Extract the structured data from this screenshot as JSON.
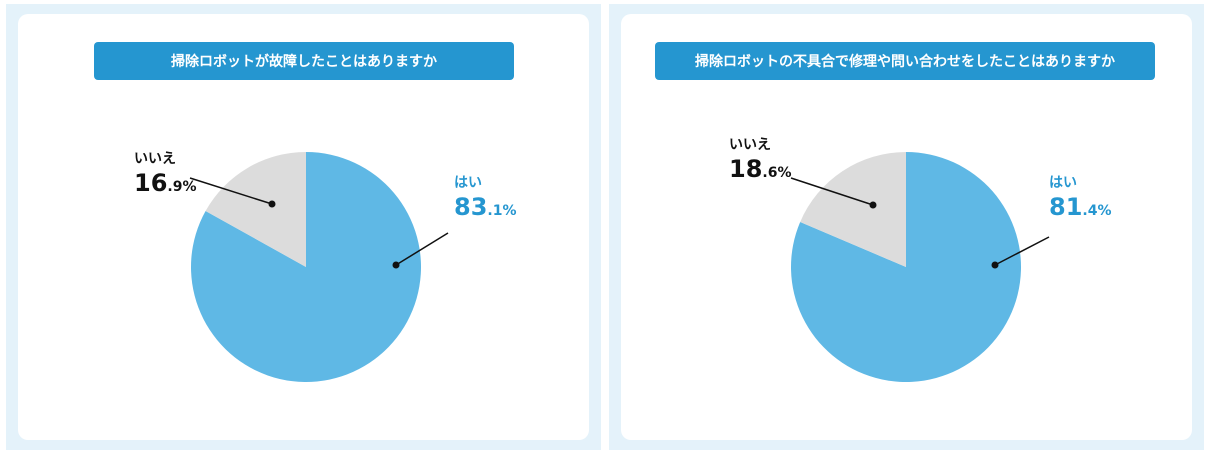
{
  "colors": {
    "yes": "#5fb8e5",
    "no": "#dcdcdc",
    "accent": "#2596d0",
    "panel_bg": "#e4f2fa"
  },
  "chart_data": [
    {
      "type": "pie",
      "title": "掃除ロボットが故障したことはありますか",
      "slices": [
        {
          "label": "はい",
          "value": 83.1,
          "int": "83",
          "dec": ".1%"
        },
        {
          "label": "いいえ",
          "value": 16.9,
          "int": "16",
          "dec": ".9%"
        }
      ]
    },
    {
      "type": "pie",
      "title": "掃除ロボットの不具合で修理や問い合わせをしたことはありますか",
      "slices": [
        {
          "label": "はい",
          "value": 81.4,
          "int": "81",
          "dec": ".4%"
        },
        {
          "label": "いいえ",
          "value": 18.6,
          "int": "18",
          "dec": ".6%"
        }
      ]
    }
  ]
}
